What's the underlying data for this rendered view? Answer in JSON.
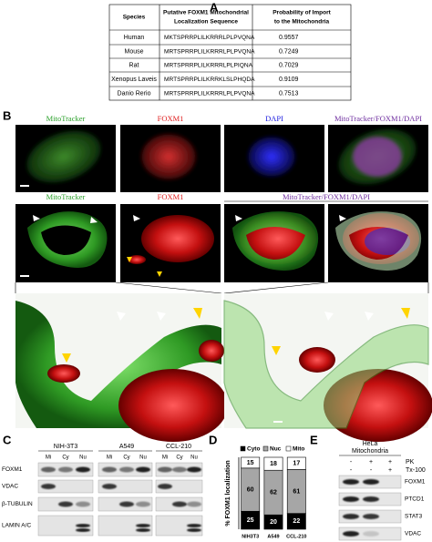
{
  "panel_labels": [
    "A",
    "B",
    "C",
    "D",
    "E"
  ],
  "table": {
    "header": [
      "Species",
      [
        "Putative FOXM1 Mitochondrial",
        "Localization Sequence"
      ],
      [
        "Probability of Import",
        "to the Mitochondria"
      ]
    ],
    "rows": [
      [
        "Human",
        "MKTSPRRPLILKRRRLPLPVQNA",
        "0.9557"
      ],
      [
        "Mouse",
        "MRTSPRRPLILKRRRLPLPVQNA",
        "0.7249"
      ],
      [
        "Rat",
        "MRTSPRRPLILKRRRLPLPIQNA",
        "0.7029"
      ],
      [
        "Xenopus Laveis",
        "MRTSPRRPLILKRRKLSLPHQDA",
        "0.9109"
      ],
      [
        "Danio Rerio",
        "MRTSPRRPLILKRRRLPLPVQNA",
        "0.7513"
      ]
    ]
  },
  "panel_b": {
    "row1": [
      "MitoTracker",
      "FOXM1",
      "DAPI",
      "MitoTracker/FOXM1/DAPI"
    ],
    "row2": [
      "MitoTracker",
      "FOXM1",
      "MitoTracker/FOXM1/DAPI"
    ]
  },
  "panel_c": {
    "groups": [
      "NIH-3T3",
      "A549",
      "CCL-210"
    ],
    "lanes": [
      "Mi",
      "Cy",
      "Nu"
    ],
    "rows": [
      "FOXM1",
      "VDAC",
      "β-TUBULIN",
      "LAMIN A/C"
    ]
  },
  "chart_data": {
    "type": "stacked_bar",
    "y_label": "% FOXM1 localization",
    "categories": [
      "NIH3T3",
      "A549",
      "CCL-210"
    ],
    "ylim": [
      0,
      100
    ],
    "series": [
      {
        "name": "Cyto",
        "color": "#000000",
        "values": [
          25,
          20,
          22
        ]
      },
      {
        "name": "Nuc",
        "color": "#a6a6a6",
        "values": [
          60,
          62,
          61
        ]
      },
      {
        "name": "Mito",
        "color": "#ffffff",
        "values": [
          15,
          18,
          17
        ]
      }
    ]
  },
  "panel_e": {
    "title": [
      "HeLa",
      "Mitochondria"
    ],
    "treatments": [
      "PK",
      "Tx-100"
    ],
    "signs": [
      [
        "-",
        "+",
        "+"
      ],
      [
        "-",
        "-",
        "+"
      ]
    ],
    "rows": [
      "FOXM1",
      "PTCD1",
      "STAT3",
      "VDAC"
    ]
  }
}
